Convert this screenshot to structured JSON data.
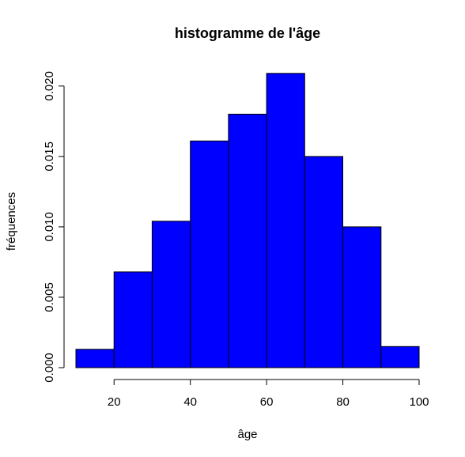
{
  "chart_data": {
    "type": "bar",
    "title": "histogramme de l'âge",
    "xlabel": "âge",
    "ylabel": "fréquences",
    "bins": [
      {
        "from": 10,
        "to": 20,
        "value": 0.0013
      },
      {
        "from": 20,
        "to": 30,
        "value": 0.0068
      },
      {
        "from": 30,
        "to": 40,
        "value": 0.0104
      },
      {
        "from": 40,
        "to": 50,
        "value": 0.0161
      },
      {
        "from": 50,
        "to": 60,
        "value": 0.018
      },
      {
        "from": 60,
        "to": 70,
        "value": 0.0209
      },
      {
        "from": 70,
        "to": 80,
        "value": 0.015
      },
      {
        "from": 80,
        "to": 90,
        "value": 0.01
      },
      {
        "from": 90,
        "to": 100,
        "value": 0.0015
      }
    ],
    "xlim": [
      10,
      100
    ],
    "ylim": [
      0,
      0.021
    ],
    "xticks": [
      20,
      40,
      60,
      80,
      100
    ],
    "xtick_labels": [
      "20",
      "40",
      "60",
      "80",
      "100"
    ],
    "yticks": [
      0,
      0.005,
      0.01,
      0.015,
      0.02
    ],
    "ytick_labels": [
      "0.000",
      "0.005",
      "0.010",
      "0.015",
      "0.020"
    ],
    "grid": false,
    "legend": "none",
    "bar_color": "#0000ff",
    "edge_color": "#000000"
  }
}
